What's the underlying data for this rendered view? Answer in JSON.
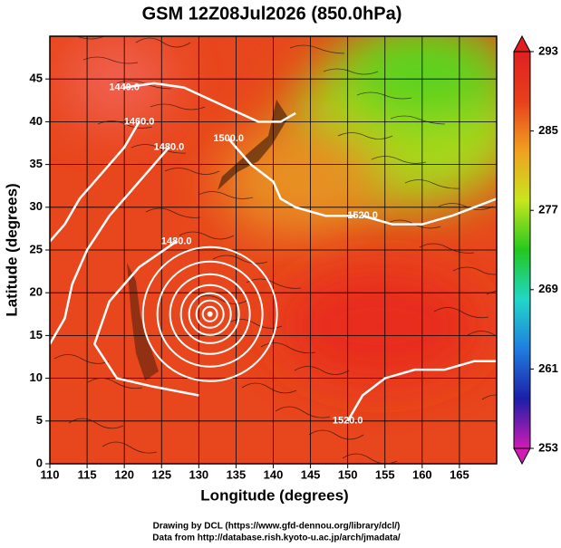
{
  "chart_data": {
    "type": "map",
    "title": "GSM 12Z08Jul2026 (850.0hPa)",
    "x_label": "Longitude (degrees)",
    "y_label": "Latitude  (degrees)",
    "xlim": [
      110,
      170
    ],
    "xticks": [
      110,
      115,
      120,
      125,
      130,
      135,
      140,
      145,
      150,
      155,
      160,
      165
    ],
    "ylim": [
      0,
      50
    ],
    "yticks": [
      0,
      5,
      10,
      15,
      20,
      25,
      30,
      35,
      40,
      45
    ],
    "grid": true,
    "colorbar": {
      "lim": [
        253,
        293
      ],
      "ticks": [
        253,
        261,
        269,
        277,
        285,
        293
      ],
      "colors": [
        "#d21bb4",
        "#1c1fa8",
        "#1f7de0",
        "#22d6c8",
        "#23c81e",
        "#c8e61e",
        "#f0a020",
        "#e8401c",
        "#e02020"
      ]
    },
    "contours": [
      {
        "label": "1440.0",
        "lon": [
          120,
          124,
          128,
          133,
          138,
          141,
          143
        ],
        "lat": [
          44,
          44.5,
          44,
          42,
          40,
          40,
          41
        ]
      },
      {
        "label": "1460.0",
        "lon": [
          122,
          120,
          117,
          114,
          112,
          110
        ],
        "lat": [
          40,
          37,
          34,
          31,
          28,
          26
        ]
      },
      {
        "label": "1480.0",
        "lon": [
          126,
          122,
          118,
          115,
          113,
          112,
          110
        ],
        "lat": [
          37,
          33,
          29,
          25,
          21,
          17,
          14
        ]
      },
      {
        "label": "1500.0",
        "lon": [
          134,
          137,
          140,
          141,
          143,
          147,
          151
        ],
        "lat": [
          38,
          35,
          33,
          31,
          30,
          29,
          29
        ]
      },
      {
        "label": "1520.0",
        "lon": [
          152,
          156,
          160,
          164,
          167,
          170
        ],
        "lat": [
          29,
          28,
          28,
          29,
          30,
          31
        ]
      },
      {
        "label": "1480.0",
        "lon": [
          127,
          122,
          118,
          116,
          119,
          124,
          130
        ],
        "lat": [
          26,
          23,
          19,
          14,
          10,
          9,
          8
        ]
      },
      {
        "label": "1520.0",
        "lon": [
          150,
          152,
          155,
          159,
          163,
          167,
          170
        ],
        "lat": [
          5,
          8,
          10,
          11,
          11,
          12,
          12
        ]
      }
    ],
    "cyclone": {
      "lon": 131.5,
      "lat": 17.5
    }
  },
  "credits": [
    "Drawing by DCL (https://www.gfd-dennou.org/library/dcl/)",
    "Data from http://database.rish.kyoto-u.ac.jp/arch/jmadata/"
  ]
}
